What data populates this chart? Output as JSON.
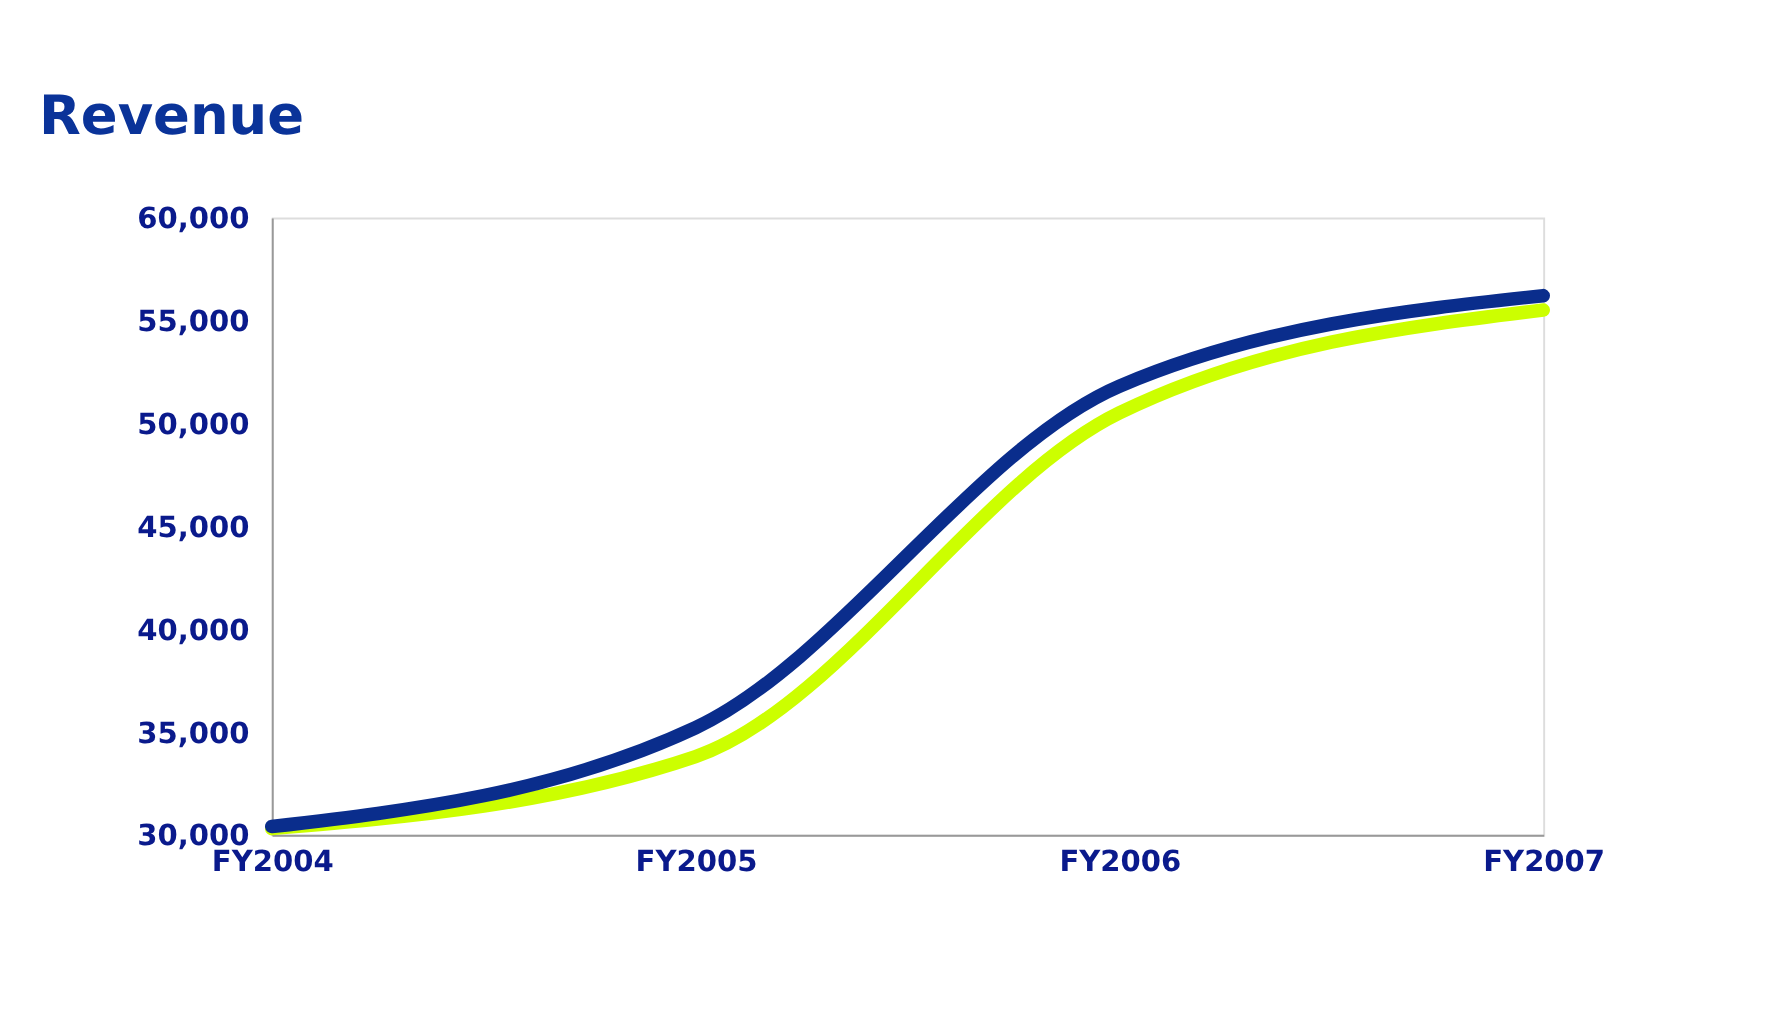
{
  "chart_data": {
    "type": "line",
    "title": "Revenue",
    "categories": [
      "FY2004",
      "FY2005",
      "FY2006",
      "FY2007"
    ],
    "series": [
      {
        "color": "#ccff00",
        "values": [
          30300,
          33800,
          50500,
          55500
        ]
      },
      {
        "color": "#0a2d8c",
        "values": [
          30400,
          35200,
          51800,
          56200
        ]
      }
    ],
    "ylim": [
      30000,
      60000
    ],
    "yticks": [
      {
        "value": 30000,
        "label": "30,000"
      },
      {
        "value": 35000,
        "label": "35,000"
      },
      {
        "value": 40000,
        "label": "40,000"
      },
      {
        "value": 45000,
        "label": "45,000"
      },
      {
        "value": 50000,
        "label": "50,000"
      },
      {
        "value": 55000,
        "label": "55,000"
      },
      {
        "value": 60000,
        "label": "60,000"
      }
    ],
    "grid": false,
    "legend": false,
    "marker": "none",
    "line_style": "solid"
  }
}
